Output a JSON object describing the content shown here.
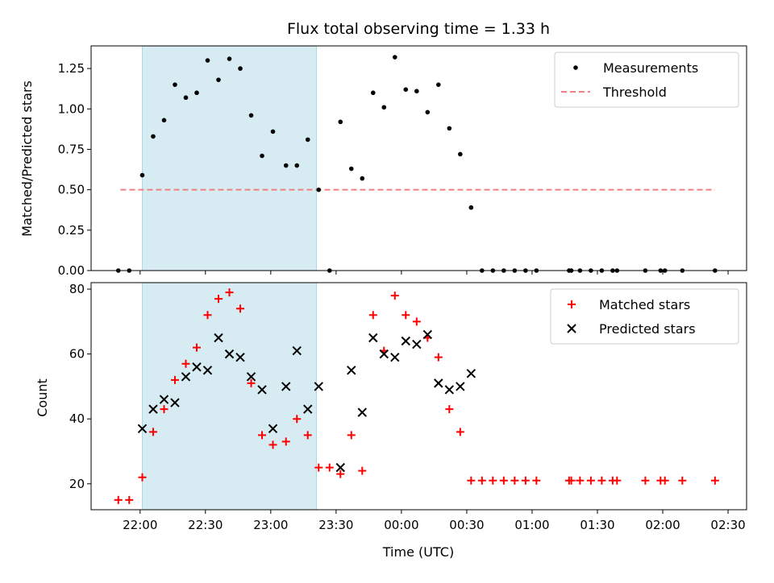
{
  "chart_data": {
    "title": "Flux total observing time = 1.33 h",
    "xlabel": "Time (UTC)",
    "x_tick_labels": [
      "22:00",
      "22:30",
      "23:00",
      "23:30",
      "00:00",
      "00:30",
      "01:00",
      "01:30",
      "02:00",
      "02:30"
    ],
    "x_tick_minutes": [
      0,
      30,
      60,
      90,
      120,
      150,
      180,
      210,
      240,
      270
    ],
    "xlim_minutes": [
      -22.5,
      278.5
    ],
    "shaded_span_minutes": [
      1,
      81
    ],
    "shade_color": "#add8e6",
    "panels": [
      {
        "type": "scatter",
        "ylabel": "Matched/Predicted stars",
        "ylim": [
          0,
          1.39
        ],
        "y_ticks": [
          0.0,
          0.25,
          0.5,
          0.75,
          1.0,
          1.25
        ],
        "y_tick_labels": [
          "0.00",
          "0.25",
          "0.50",
          "0.75",
          "1.00",
          "1.25"
        ],
        "legend_position": "top-right",
        "threshold": {
          "name": "Threshold",
          "value": 0.5,
          "x_range_minutes": [
            -9,
            264
          ],
          "color": "#f08080"
        },
        "series": [
          {
            "name": "Measurements",
            "color": "#000000",
            "marker": "dot",
            "points": [
              [
                "21:50",
                0
              ],
              [
                "21:55",
                0
              ],
              [
                "22:01",
                0.59
              ],
              [
                "22:06",
                0.83
              ],
              [
                "22:11",
                0.93
              ],
              [
                "22:16",
                1.15
              ],
              [
                "22:21",
                1.07
              ],
              [
                "22:26",
                1.1
              ],
              [
                "22:31",
                1.3
              ],
              [
                "22:36",
                1.18
              ],
              [
                "22:41",
                1.31
              ],
              [
                "22:46",
                1.25
              ],
              [
                "22:51",
                0.96
              ],
              [
                "22:56",
                0.71
              ],
              [
                "23:01",
                0.86
              ],
              [
                "23:07",
                0.65
              ],
              [
                "23:12",
                0.65
              ],
              [
                "23:17",
                0.81
              ],
              [
                "23:22",
                0.5
              ],
              [
                "23:27",
                0
              ],
              [
                "23:32",
                0.92
              ],
              [
                "23:37",
                0.63
              ],
              [
                "23:42",
                0.57
              ],
              [
                "23:47",
                1.1
              ],
              [
                "23:52",
                1.01
              ],
              [
                "23:57",
                1.32
              ],
              [
                "00:02",
                1.12
              ],
              [
                "00:07",
                1.11
              ],
              [
                "00:12",
                0.98
              ],
              [
                "00:17",
                1.15
              ],
              [
                "00:22",
                0.88
              ],
              [
                "00:27",
                0.72
              ],
              [
                "00:32",
                0.39
              ],
              [
                "00:37",
                0
              ],
              [
                "00:42",
                0
              ],
              [
                "00:47",
                0
              ],
              [
                "00:52",
                0
              ],
              [
                "00:57",
                0
              ],
              [
                "01:02",
                0
              ],
              [
                "01:17",
                0
              ],
              [
                "01:18",
                0
              ],
              [
                "01:22",
                0
              ],
              [
                "01:27",
                0
              ],
              [
                "01:32",
                0
              ],
              [
                "01:37",
                0
              ],
              [
                "01:39",
                0
              ],
              [
                "01:52",
                0
              ],
              [
                "01:59",
                0
              ],
              [
                "02:01",
                0
              ],
              [
                "02:09",
                0
              ],
              [
                "02:24",
                0
              ]
            ]
          }
        ]
      },
      {
        "type": "scatter",
        "ylabel": "Count",
        "ylim": [
          12,
          82
        ],
        "y_ticks": [
          20,
          40,
          60,
          80
        ],
        "y_tick_labels": [
          "20",
          "40",
          "60",
          "80"
        ],
        "legend_position": "top-right",
        "series": [
          {
            "name": "Matched stars",
            "color": "#ff0000",
            "marker": "plus",
            "points": [
              [
                "21:50",
                15
              ],
              [
                "21:55",
                15
              ],
              [
                "22:01",
                22
              ],
              [
                "22:06",
                36
              ],
              [
                "22:11",
                43
              ],
              [
                "22:16",
                52
              ],
              [
                "22:21",
                57
              ],
              [
                "22:26",
                62
              ],
              [
                "22:31",
                72
              ],
              [
                "22:36",
                77
              ],
              [
                "22:41",
                79
              ],
              [
                "22:46",
                74
              ],
              [
                "22:51",
                51
              ],
              [
                "22:56",
                35
              ],
              [
                "23:01",
                32
              ],
              [
                "23:07",
                33
              ],
              [
                "23:12",
                40
              ],
              [
                "23:17",
                35
              ],
              [
                "23:22",
                25
              ],
              [
                "23:27",
                25
              ],
              [
                "23:32",
                23
              ],
              [
                "23:37",
                35
              ],
              [
                "23:42",
                24
              ],
              [
                "23:47",
                72
              ],
              [
                "23:52",
                61
              ],
              [
                "23:57",
                78
              ],
              [
                "00:02",
                72
              ],
              [
                "00:07",
                70
              ],
              [
                "00:12",
                65
              ],
              [
                "00:17",
                59
              ],
              [
                "00:22",
                43
              ],
              [
                "00:27",
                36
              ],
              [
                "00:32",
                21
              ],
              [
                "00:37",
                21
              ],
              [
                "00:42",
                21
              ],
              [
                "00:47",
                21
              ],
              [
                "00:52",
                21
              ],
              [
                "00:57",
                21
              ],
              [
                "01:02",
                21
              ],
              [
                "01:17",
                21
              ],
              [
                "01:18",
                21
              ],
              [
                "01:22",
                21
              ],
              [
                "01:27",
                21
              ],
              [
                "01:32",
                21
              ],
              [
                "01:37",
                21
              ],
              [
                "01:39",
                21
              ],
              [
                "01:52",
                21
              ],
              [
                "01:59",
                21
              ],
              [
                "02:01",
                21
              ],
              [
                "02:09",
                21
              ],
              [
                "02:24",
                21
              ]
            ]
          },
          {
            "name": "Predicted stars",
            "color": "#000000",
            "marker": "x",
            "points": [
              [
                "22:01",
                37
              ],
              [
                "22:06",
                43
              ],
              [
                "22:11",
                46
              ],
              [
                "22:16",
                45
              ],
              [
                "22:21",
                53
              ],
              [
                "22:26",
                56
              ],
              [
                "22:31",
                55
              ],
              [
                "22:36",
                65
              ],
              [
                "22:41",
                60
              ],
              [
                "22:46",
                59
              ],
              [
                "22:51",
                53
              ],
              [
                "22:56",
                49
              ],
              [
                "23:01",
                37
              ],
              [
                "23:07",
                50
              ],
              [
                "23:12",
                61
              ],
              [
                "23:17",
                43
              ],
              [
                "23:22",
                50
              ],
              [
                "23:32",
                25
              ],
              [
                "23:37",
                55
              ],
              [
                "23:42",
                42
              ],
              [
                "23:47",
                65
              ],
              [
                "23:52",
                60
              ],
              [
                "23:57",
                59
              ],
              [
                "00:02",
                64
              ],
              [
                "00:07",
                63
              ],
              [
                "00:12",
                66
              ],
              [
                "00:17",
                51
              ],
              [
                "00:22",
                49
              ],
              [
                "00:27",
                50
              ],
              [
                "00:32",
                54
              ]
            ]
          }
        ]
      }
    ]
  }
}
